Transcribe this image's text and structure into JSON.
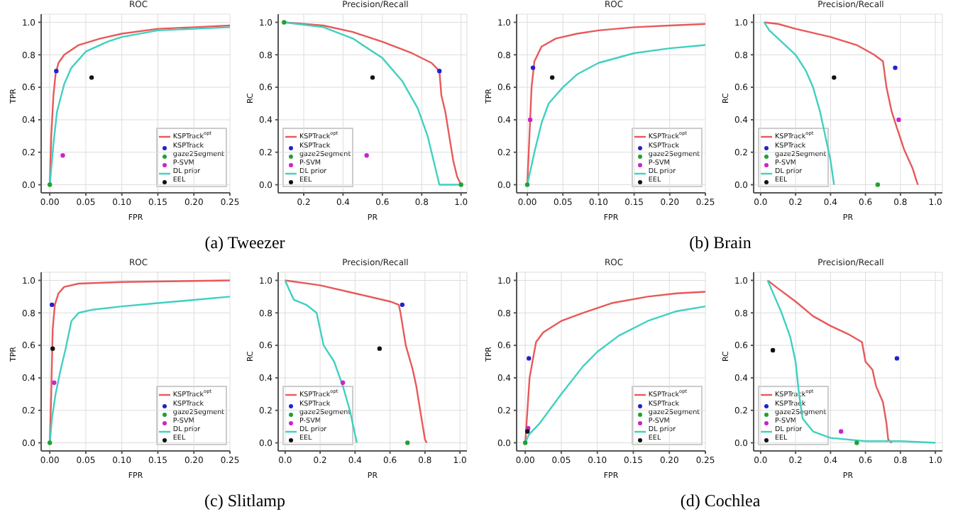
{
  "chart_data": [
    {
      "type": "line",
      "title": "ROC",
      "xlabel": "FPR",
      "ylabel": "TPR",
      "xlim": [
        -0.012,
        0.25
      ],
      "ylim": [
        -0.05,
        1.05
      ],
      "xticks": [
        {
          "value": 0,
          "label": "0.00"
        },
        {
          "value": 0.05,
          "label": "0.05"
        },
        {
          "value": 0.1,
          "label": "0.10"
        },
        {
          "value": 0.15,
          "label": "0.15"
        },
        {
          "value": 0.2,
          "label": "0.20"
        },
        {
          "value": 0.25,
          "label": "0.25"
        }
      ],
      "yticks": [
        {
          "value": 0,
          "label": "0.0"
        },
        {
          "value": 0.2,
          "label": "0.2"
        },
        {
          "value": 0.4,
          "label": "0.4"
        },
        {
          "value": 0.6,
          "label": "0.6"
        },
        {
          "value": 0.8,
          "label": "0.8"
        },
        {
          "value": 1,
          "label": "1.0"
        }
      ],
      "grid": true,
      "legend": "bottom right",
      "annotations": [
        "(a) Tweezer"
      ],
      "series": [
        {
          "name": "KSPTrack$^{opt}$",
          "color": "#e8595a",
          "x": [
            0,
            0.002,
            0.005,
            0.008,
            0.012,
            0.02,
            0.04,
            0.07,
            0.1,
            0.15,
            0.2,
            0.25
          ],
          "values": [
            0,
            0.3,
            0.55,
            0.68,
            0.75,
            0.8,
            0.86,
            0.9,
            0.93,
            0.96,
            0.97,
            0.98
          ]
        },
        {
          "name": "KSPTrack",
          "type": "scatter",
          "marker": "circle",
          "color": "#2222cc",
          "x": [
            0.009
          ],
          "values": [
            0.7
          ]
        },
        {
          "name": "gaze2Segment",
          "type": "scatter",
          "marker": "circle",
          "color": "#22a033",
          "x": [
            0
          ],
          "values": [
            0
          ]
        },
        {
          "name": "P-SVM",
          "type": "scatter",
          "marker": "circle",
          "color": "#cc22cc",
          "x": [
            0.018
          ],
          "values": [
            0.18
          ]
        },
        {
          "name": "DL prior",
          "color": "#40d0c0",
          "x": [
            0,
            0.005,
            0.01,
            0.02,
            0.03,
            0.05,
            0.08,
            0.1,
            0.15,
            0.2,
            0.25
          ],
          "values": [
            0,
            0.25,
            0.45,
            0.62,
            0.72,
            0.82,
            0.88,
            0.91,
            0.95,
            0.96,
            0.97
          ]
        },
        {
          "name": "EEL",
          "type": "scatter",
          "marker": "circle",
          "color": "#111111",
          "x": [
            0.058
          ],
          "values": [
            0.66
          ]
        }
      ]
    },
    {
      "type": "line",
      "title": "Precision/Recall",
      "xlabel": "PR",
      "ylabel": "RC",
      "xlim": [
        0.07,
        1.03
      ],
      "ylim": [
        -0.05,
        1.05
      ],
      "xticks": [
        {
          "value": 0.2,
          "label": "0.2"
        },
        {
          "value": 0.4,
          "label": "0.4"
        },
        {
          "value": 0.6,
          "label": "0.6"
        },
        {
          "value": 0.8,
          "label": "0.8"
        },
        {
          "value": 1,
          "label": "1.0"
        }
      ],
      "yticks": [
        {
          "value": 0,
          "label": "0.0"
        },
        {
          "value": 0.2,
          "label": "0.2"
        },
        {
          "value": 0.4,
          "label": "0.4"
        },
        {
          "value": 0.6,
          "label": "0.6"
        },
        {
          "value": 0.8,
          "label": "0.8"
        },
        {
          "value": 1,
          "label": "1.0"
        }
      ],
      "grid": true,
      "legend": "bottom left",
      "series": [
        {
          "name": "KSPTrack$^{opt}$",
          "color": "#e8595a",
          "x": [
            0.1,
            0.3,
            0.45,
            0.6,
            0.75,
            0.85,
            0.89,
            0.9,
            0.92,
            0.94,
            0.96,
            0.98,
            1.0
          ],
          "values": [
            1,
            0.98,
            0.94,
            0.88,
            0.81,
            0.75,
            0.7,
            0.55,
            0.45,
            0.3,
            0.15,
            0.05,
            0
          ]
        },
        {
          "name": "KSPTrack",
          "type": "scatter",
          "marker": "circle",
          "color": "#2222cc",
          "x": [
            0.89
          ],
          "values": [
            0.7
          ]
        },
        {
          "name": "gaze2Segment",
          "type": "scatter",
          "marker": "circle",
          "color": "#22a033",
          "x": [
            0.1,
            1.0
          ],
          "values": [
            1.0,
            0
          ]
        },
        {
          "name": "P-SVM",
          "type": "scatter",
          "marker": "circle",
          "color": "#cc22cc",
          "x": [
            0.52
          ],
          "values": [
            0.18
          ]
        },
        {
          "name": "DL prior",
          "color": "#40d0c0",
          "x": [
            0.1,
            0.3,
            0.45,
            0.6,
            0.7,
            0.78,
            0.83,
            0.86,
            0.89,
            1.0
          ],
          "values": [
            1,
            0.97,
            0.9,
            0.78,
            0.64,
            0.47,
            0.3,
            0.15,
            0,
            0
          ]
        },
        {
          "name": "EEL",
          "type": "scatter",
          "marker": "circle",
          "color": "#111111",
          "x": [
            0.55
          ],
          "values": [
            0.66
          ]
        }
      ]
    },
    {
      "type": "line",
      "title": "ROC",
      "xlabel": "FPR",
      "ylabel": "TPR",
      "xlim": [
        -0.015,
        0.25
      ],
      "ylim": [
        -0.05,
        1.05
      ],
      "xticks": [
        {
          "value": 0,
          "label": "0.00"
        },
        {
          "value": 0.05,
          "label": "0.05"
        },
        {
          "value": 0.1,
          "label": "0.10"
        },
        {
          "value": 0.15,
          "label": "0.15"
        },
        {
          "value": 0.2,
          "label": "0.20"
        },
        {
          "value": 0.25,
          "label": "0.25"
        }
      ],
      "yticks": [
        {
          "value": 0,
          "label": "0.0"
        },
        {
          "value": 0.2,
          "label": "0.2"
        },
        {
          "value": 0.4,
          "label": "0.4"
        },
        {
          "value": 0.6,
          "label": "0.6"
        },
        {
          "value": 0.8,
          "label": "0.8"
        },
        {
          "value": 1,
          "label": "1.0"
        }
      ],
      "grid": true,
      "legend": "bottom right",
      "annotations": [
        "(b) Brain"
      ],
      "series": [
        {
          "name": "KSPTrack$^{opt}$",
          "color": "#e8595a",
          "x": [
            0,
            0.003,
            0.006,
            0.01,
            0.02,
            0.04,
            0.07,
            0.1,
            0.15,
            0.2,
            0.25
          ],
          "values": [
            0,
            0.3,
            0.6,
            0.76,
            0.85,
            0.9,
            0.93,
            0.95,
            0.97,
            0.98,
            0.99
          ]
        },
        {
          "name": "KSPTrack",
          "type": "scatter",
          "marker": "circle",
          "color": "#2222cc",
          "x": [
            0.008
          ],
          "values": [
            0.72
          ]
        },
        {
          "name": "gaze2Segment",
          "type": "scatter",
          "marker": "circle",
          "color": "#22a033",
          "x": [
            0
          ],
          "values": [
            0
          ]
        },
        {
          "name": "P-SVM",
          "type": "scatter",
          "marker": "circle",
          "color": "#cc22cc",
          "x": [
            0.004
          ],
          "values": [
            0.4
          ]
        },
        {
          "name": "DL prior",
          "color": "#40d0c0",
          "x": [
            0,
            0.01,
            0.02,
            0.03,
            0.05,
            0.07,
            0.1,
            0.15,
            0.2,
            0.25
          ],
          "values": [
            0,
            0.2,
            0.38,
            0.5,
            0.6,
            0.68,
            0.75,
            0.81,
            0.84,
            0.86
          ]
        },
        {
          "name": "EEL",
          "type": "scatter",
          "marker": "circle",
          "color": "#111111",
          "x": [
            0.035
          ],
          "values": [
            0.66
          ]
        }
      ]
    },
    {
      "type": "line",
      "title": "Precision/Recall",
      "xlabel": "PR",
      "ylabel": "RC",
      "xlim": [
        -0.04,
        1.04
      ],
      "ylim": [
        -0.05,
        1.05
      ],
      "xticks": [
        {
          "value": 0,
          "label": "0.0"
        },
        {
          "value": 0.2,
          "label": "0.2"
        },
        {
          "value": 0.4,
          "label": "0.4"
        },
        {
          "value": 0.6,
          "label": "0.6"
        },
        {
          "value": 0.8,
          "label": "0.8"
        },
        {
          "value": 1,
          "label": "1.0"
        }
      ],
      "yticks": [
        {
          "value": 0,
          "label": "0.0"
        },
        {
          "value": 0.2,
          "label": "0.2"
        },
        {
          "value": 0.4,
          "label": "0.4"
        },
        {
          "value": 0.6,
          "label": "0.6"
        },
        {
          "value": 0.8,
          "label": "0.8"
        },
        {
          "value": 1,
          "label": "1.0"
        }
      ],
      "grid": true,
      "legend": "bottom left",
      "series": [
        {
          "name": "KSPTrack$^{opt}$",
          "color": "#e8595a",
          "x": [
            0.02,
            0.1,
            0.2,
            0.4,
            0.55,
            0.65,
            0.7,
            0.72,
            0.75,
            0.78,
            0.82,
            0.87,
            0.89,
            0.9
          ],
          "values": [
            1,
            0.99,
            0.96,
            0.91,
            0.86,
            0.8,
            0.76,
            0.6,
            0.45,
            0.35,
            0.22,
            0.1,
            0.03,
            0
          ]
        },
        {
          "name": "KSPTrack",
          "type": "scatter",
          "marker": "circle",
          "color": "#2222cc",
          "x": [
            0.77
          ],
          "values": [
            0.72
          ]
        },
        {
          "name": "gaze2Segment",
          "type": "scatter",
          "marker": "circle",
          "color": "#22a033",
          "x": [
            0.67
          ],
          "values": [
            0
          ]
        },
        {
          "name": "P-SVM",
          "type": "scatter",
          "marker": "circle",
          "color": "#cc22cc",
          "x": [
            0.79
          ],
          "values": [
            0.4
          ]
        },
        {
          "name": "DL prior",
          "color": "#40d0c0",
          "x": [
            0.02,
            0.05,
            0.12,
            0.2,
            0.26,
            0.3,
            0.34,
            0.37,
            0.4,
            0.42
          ],
          "values": [
            1,
            0.95,
            0.88,
            0.8,
            0.7,
            0.6,
            0.45,
            0.3,
            0.15,
            0
          ]
        },
        {
          "name": "EEL",
          "type": "scatter",
          "marker": "circle",
          "color": "#111111",
          "x": [
            0.42
          ],
          "values": [
            0.66
          ]
        }
      ]
    },
    {
      "type": "line",
      "title": "ROC",
      "xlabel": "FPR",
      "ylabel": "TPR",
      "xlim": [
        -0.012,
        0.25
      ],
      "ylim": [
        -0.05,
        1.05
      ],
      "xticks": [
        {
          "value": 0,
          "label": "0.00"
        },
        {
          "value": 0.05,
          "label": "0.05"
        },
        {
          "value": 0.1,
          "label": "0.10"
        },
        {
          "value": 0.15,
          "label": "0.15"
        },
        {
          "value": 0.2,
          "label": "0.20"
        },
        {
          "value": 0.25,
          "label": "0.25"
        }
      ],
      "yticks": [
        {
          "value": 0,
          "label": "0.0"
        },
        {
          "value": 0.2,
          "label": "0.2"
        },
        {
          "value": 0.4,
          "label": "0.4"
        },
        {
          "value": 0.6,
          "label": "0.6"
        },
        {
          "value": 0.8,
          "label": "0.8"
        },
        {
          "value": 1,
          "label": "1.0"
        }
      ],
      "grid": true,
      "legend": "bottom right",
      "annotations": [
        "(c) Slitlamp"
      ],
      "series": [
        {
          "name": "KSPTrack$^{opt}$",
          "color": "#e8595a",
          "x": [
            0,
            0.002,
            0.004,
            0.007,
            0.012,
            0.02,
            0.04,
            0.1,
            0.25
          ],
          "values": [
            0,
            0.3,
            0.7,
            0.85,
            0.92,
            0.96,
            0.98,
            0.99,
            1.0
          ]
        },
        {
          "name": "KSPTrack",
          "type": "scatter",
          "marker": "circle",
          "color": "#2222cc",
          "x": [
            0.003
          ],
          "values": [
            0.85
          ]
        },
        {
          "name": "gaze2Segment",
          "type": "scatter",
          "marker": "circle",
          "color": "#22a033",
          "x": [
            0
          ],
          "values": [
            0
          ]
        },
        {
          "name": "P-SVM",
          "type": "scatter",
          "marker": "circle",
          "color": "#cc22cc",
          "x": [
            0.006
          ],
          "values": [
            0.37
          ]
        },
        {
          "name": "DL prior",
          "color": "#40d0c0",
          "x": [
            0,
            0.003,
            0.008,
            0.015,
            0.022,
            0.03,
            0.04,
            0.06,
            0.1,
            0.15,
            0.2,
            0.25
          ],
          "values": [
            0,
            0.15,
            0.3,
            0.45,
            0.58,
            0.75,
            0.8,
            0.82,
            0.84,
            0.86,
            0.88,
            0.9
          ]
        },
        {
          "name": "EEL",
          "type": "scatter",
          "marker": "circle",
          "color": "#111111",
          "x": [
            0.004
          ],
          "values": [
            0.58
          ]
        }
      ]
    },
    {
      "type": "line",
      "title": "Precision/Recall",
      "xlabel": "PR",
      "ylabel": "RC",
      "xlim": [
        -0.04,
        1.04
      ],
      "ylim": [
        -0.05,
        1.05
      ],
      "xticks": [
        {
          "value": 0,
          "label": "0.0"
        },
        {
          "value": 0.2,
          "label": "0.2"
        },
        {
          "value": 0.4,
          "label": "0.4"
        },
        {
          "value": 0.6,
          "label": "0.6"
        },
        {
          "value": 0.8,
          "label": "0.8"
        },
        {
          "value": 1,
          "label": "1.0"
        }
      ],
      "yticks": [
        {
          "value": 0,
          "label": "0.0"
        },
        {
          "value": 0.2,
          "label": "0.2"
        },
        {
          "value": 0.4,
          "label": "0.4"
        },
        {
          "value": 0.6,
          "label": "0.6"
        },
        {
          "value": 0.8,
          "label": "0.8"
        },
        {
          "value": 1,
          "label": "1.0"
        }
      ],
      "grid": true,
      "legend": "bottom left",
      "series": [
        {
          "name": "KSPTrack$^{opt}$",
          "color": "#e8595a",
          "x": [
            0,
            0.2,
            0.4,
            0.6,
            0.65,
            0.66,
            0.69,
            0.73,
            0.75,
            0.78,
            0.8,
            0.81
          ],
          "values": [
            1,
            0.97,
            0.92,
            0.87,
            0.85,
            0.8,
            0.6,
            0.45,
            0.35,
            0.15,
            0.02,
            0
          ]
        },
        {
          "name": "KSPTrack",
          "type": "scatter",
          "marker": "circle",
          "color": "#2222cc",
          "x": [
            0.67
          ],
          "values": [
            0.85
          ]
        },
        {
          "name": "gaze2Segment",
          "type": "scatter",
          "marker": "circle",
          "color": "#22a033",
          "x": [
            0.7
          ],
          "values": [
            0
          ]
        },
        {
          "name": "P-SVM",
          "type": "scatter",
          "marker": "circle",
          "color": "#cc22cc",
          "x": [
            0.33
          ],
          "values": [
            0.37
          ]
        },
        {
          "name": "DL prior",
          "color": "#40d0c0",
          "x": [
            0,
            0.02,
            0.05,
            0.12,
            0.18,
            0.2,
            0.22,
            0.28,
            0.33,
            0.37,
            0.4,
            0.41
          ],
          "values": [
            1,
            0.95,
            0.88,
            0.85,
            0.8,
            0.7,
            0.6,
            0.5,
            0.35,
            0.2,
            0.05,
            0
          ]
        },
        {
          "name": "EEL",
          "type": "scatter",
          "marker": "circle",
          "color": "#111111",
          "x": [
            0.54
          ],
          "values": [
            0.58
          ]
        }
      ]
    },
    {
      "type": "line",
      "title": "ROC",
      "xlabel": "FPR",
      "ylabel": "TPR",
      "xlim": [
        -0.012,
        0.25
      ],
      "ylim": [
        -0.05,
        1.05
      ],
      "xticks": [
        {
          "value": 0,
          "label": "0.00"
        },
        {
          "value": 0.05,
          "label": "0.05"
        },
        {
          "value": 0.1,
          "label": "0.10"
        },
        {
          "value": 0.15,
          "label": "0.15"
        },
        {
          "value": 0.2,
          "label": "0.20"
        },
        {
          "value": 0.25,
          "label": "0.25"
        }
      ],
      "yticks": [
        {
          "value": 0,
          "label": "0.0"
        },
        {
          "value": 0.2,
          "label": "0.2"
        },
        {
          "value": 0.4,
          "label": "0.4"
        },
        {
          "value": 0.6,
          "label": "0.6"
        },
        {
          "value": 0.8,
          "label": "0.8"
        },
        {
          "value": 1,
          "label": "1.0"
        }
      ],
      "grid": true,
      "legend": "bottom right",
      "annotations": [
        "(d) Cochlea"
      ],
      "series": [
        {
          "name": "KSPTrack$^{opt}$",
          "color": "#e8595a",
          "x": [
            0,
            0.003,
            0.006,
            0.01,
            0.015,
            0.025,
            0.05,
            0.08,
            0.12,
            0.17,
            0.21,
            0.25
          ],
          "values": [
            0,
            0.2,
            0.4,
            0.5,
            0.62,
            0.68,
            0.75,
            0.8,
            0.86,
            0.9,
            0.92,
            0.93
          ]
        },
        {
          "name": "KSPTrack",
          "type": "scatter",
          "marker": "circle",
          "color": "#2222cc",
          "x": [
            0.005
          ],
          "values": [
            0.52
          ]
        },
        {
          "name": "gaze2Segment",
          "type": "scatter",
          "marker": "circle",
          "color": "#22a033",
          "x": [
            0
          ],
          "values": [
            0
          ]
        },
        {
          "name": "P-SVM",
          "type": "scatter",
          "marker": "circle",
          "color": "#cc22cc",
          "x": [
            0.004
          ],
          "values": [
            0.09
          ]
        },
        {
          "name": "DL prior",
          "color": "#40d0c0",
          "x": [
            0,
            0.005,
            0.02,
            0.05,
            0.08,
            0.1,
            0.13,
            0.17,
            0.21,
            0.25
          ],
          "values": [
            0,
            0.05,
            0.12,
            0.3,
            0.47,
            0.56,
            0.66,
            0.75,
            0.81,
            0.84
          ]
        },
        {
          "name": "EEL",
          "type": "scatter",
          "marker": "circle",
          "color": "#111111",
          "x": [
            0.003
          ],
          "values": [
            0.07
          ]
        }
      ]
    },
    {
      "type": "line",
      "title": "Precision/Recall",
      "xlabel": "PR",
      "ylabel": "RC",
      "xlim": [
        -0.04,
        1.04
      ],
      "ylim": [
        -0.05,
        1.05
      ],
      "xticks": [
        {
          "value": 0,
          "label": "0.0"
        },
        {
          "value": 0.2,
          "label": "0.2"
        },
        {
          "value": 0.4,
          "label": "0.4"
        },
        {
          "value": 0.6,
          "label": "0.6"
        },
        {
          "value": 0.8,
          "label": "0.8"
        },
        {
          "value": 1,
          "label": "1.0"
        }
      ],
      "yticks": [
        {
          "value": 0,
          "label": "0.0"
        },
        {
          "value": 0.2,
          "label": "0.2"
        },
        {
          "value": 0.4,
          "label": "0.4"
        },
        {
          "value": 0.6,
          "label": "0.6"
        },
        {
          "value": 0.8,
          "label": "0.8"
        },
        {
          "value": 1,
          "label": "1.0"
        }
      ],
      "grid": true,
      "legend": "bottom left",
      "series": [
        {
          "name": "KSPTrack$^{opt}$",
          "color": "#e8595a",
          "x": [
            0.04,
            0.1,
            0.2,
            0.3,
            0.4,
            0.5,
            0.58,
            0.6,
            0.64,
            0.66,
            0.7,
            0.72,
            0.73,
            0.75
          ],
          "values": [
            1,
            0.95,
            0.87,
            0.78,
            0.72,
            0.67,
            0.62,
            0.5,
            0.45,
            0.35,
            0.25,
            0.12,
            0.02,
            0
          ]
        },
        {
          "name": "KSPTrack",
          "type": "scatter",
          "marker": "circle",
          "color": "#2222cc",
          "x": [
            0.78
          ],
          "values": [
            0.52
          ]
        },
        {
          "name": "gaze2Segment",
          "type": "scatter",
          "marker": "circle",
          "color": "#22a033",
          "x": [
            0.55
          ],
          "values": [
            0
          ]
        },
        {
          "name": "P-SVM",
          "type": "scatter",
          "marker": "circle",
          "color": "#cc22cc",
          "x": [
            0.46
          ],
          "values": [
            0.07
          ]
        },
        {
          "name": "DL prior",
          "color": "#40d0c0",
          "x": [
            0.04,
            0.08,
            0.12,
            0.17,
            0.2,
            0.22,
            0.24,
            0.3,
            0.4,
            0.6,
            0.8,
            1.0
          ],
          "values": [
            1,
            0.9,
            0.8,
            0.65,
            0.5,
            0.3,
            0.15,
            0.07,
            0.03,
            0.01,
            0.01,
            0
          ]
        },
        {
          "name": "EEL",
          "type": "scatter",
          "marker": "circle",
          "color": "#111111",
          "x": [
            0.07
          ],
          "values": [
            0.57
          ]
        }
      ]
    }
  ]
}
